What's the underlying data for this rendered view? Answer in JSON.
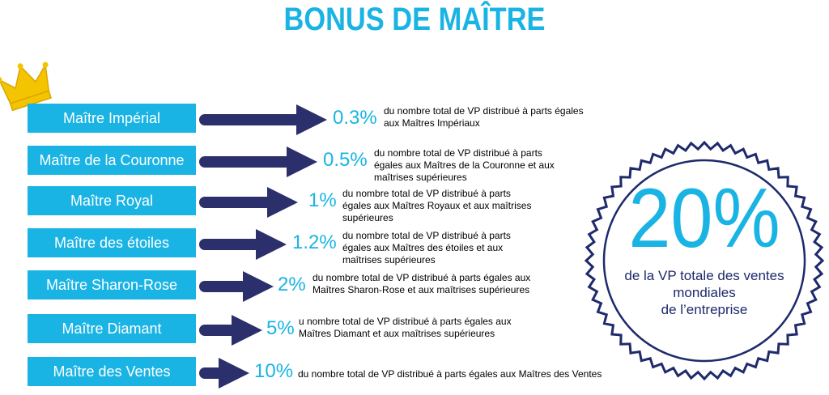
{
  "title": "BONUS DE MAÎTRE",
  "colors": {
    "accent": "#1ab4e4",
    "arrow": "#2b2f6b",
    "navy": "#1e2a6b",
    "crown": "#f4c400"
  },
  "icons": {
    "crown": "crown-icon",
    "arrow": "arrow-right-icon"
  },
  "ranks": [
    {
      "name": "Maître Impérial",
      "percent": "0.3%",
      "description": "du nombre total de VP distribué à parts égales aux Maîtres Impériaux"
    },
    {
      "name": "Maître de la Couronne",
      "percent": "0.5%",
      "description": "du nombre total de VP distribué à parts égales aux Maîtres de la Couronne et aux maîtrises supérieures"
    },
    {
      "name": "Maître Royal",
      "percent": "1%",
      "description": "du nombre total de VP distribué à parts égales aux Maîtres Royaux et aux maîtrises supérieures"
    },
    {
      "name": "Maître des étoiles",
      "percent": "1.2%",
      "description": "du nombre total de VP distribué à parts égales aux Maîtres des étoiles et aux maîtrises supérieures"
    },
    {
      "name": "Maître Sharon-Rose",
      "percent": "2%",
      "description": "du nombre total de VP distribué à parts égales aux Maîtres Sharon-Rose et aux maîtrises supérieures"
    },
    {
      "name": "Maître Diamant",
      "percent": "5%",
      "description": "u nombre total de VP distribué à parts égales aux Maîtres Diamant et aux maîtrises supérieures"
    },
    {
      "name": "Maître des Ventes",
      "percent": "10%",
      "description": "du nombre total de VP distribué à parts égales aux Maîtres des Ventes"
    }
  ],
  "badge": {
    "value": "20%",
    "line1": "de la VP totale des ventes",
    "line2": "mondiales",
    "line3": "de l’entreprise"
  }
}
